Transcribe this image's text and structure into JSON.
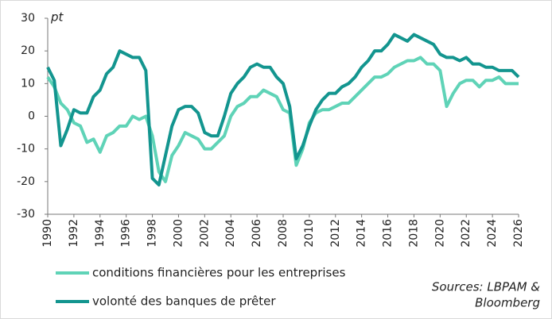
{
  "chart_data": {
    "type": "line",
    "y_label": "pt",
    "source": [
      "Sources: LBPAM &",
      "Bloomberg"
    ],
    "x": [
      1990,
      1990.5,
      1991,
      1991.5,
      1992,
      1992.5,
      1993,
      1993.5,
      1994,
      1994.5,
      1995,
      1995.5,
      1996,
      1996.5,
      1997,
      1997.5,
      1998,
      1998.5,
      1999,
      1999.5,
      2000,
      2000.5,
      2001,
      2001.5,
      2002,
      2002.5,
      2003,
      2003.5,
      2004,
      2004.5,
      2005,
      2005.5,
      2006,
      2006.5,
      2007,
      2007.5,
      2008,
      2008.5,
      2009,
      2009.5,
      2010,
      2010.5,
      2011,
      2011.5,
      2012,
      2012.5,
      2013,
      2013.5,
      2014,
      2014.5,
      2015,
      2015.5,
      2016,
      2016.5,
      2017,
      2017.5,
      2018,
      2018.5,
      2019,
      2019.5,
      2020,
      2020.5,
      2021,
      2021.5,
      2022,
      2022.5,
      2023,
      2023.5,
      2024,
      2024.5,
      2025,
      2025.5,
      2026
    ],
    "series": [
      {
        "name": "conditions financières pour les entreprises",
        "color": "#5fd3b7",
        "values": [
          12,
          9,
          4,
          2,
          -2,
          -3,
          -8,
          -7,
          -11,
          -6,
          -5,
          -3,
          -3,
          0,
          -1,
          0,
          -6,
          -17,
          -20,
          -12,
          -9,
          -5,
          -6,
          -7,
          -10,
          -10,
          -8,
          -6,
          0,
          3,
          4,
          6,
          6,
          8,
          7,
          6,
          2,
          1,
          -15,
          -10,
          -2,
          1,
          2,
          2,
          3,
          4,
          4,
          6,
          8,
          10,
          12,
          12,
          13,
          15,
          16,
          17,
          17,
          18,
          16,
          16,
          14,
          3,
          7,
          10,
          11,
          11,
          9,
          11,
          11,
          12,
          10,
          10,
          10
        ]
      },
      {
        "name": "volonté des banques de prêter",
        "color": "#13958f",
        "values": [
          15,
          11,
          -9,
          -4,
          2,
          1,
          1,
          6,
          8,
          13,
          15,
          20,
          19,
          18,
          18,
          14,
          -19,
          -21,
          -12,
          -3,
          2,
          3,
          3,
          1,
          -5,
          -6,
          -6,
          0,
          7,
          10,
          12,
          15,
          16,
          15,
          15,
          12,
          10,
          3,
          -13,
          -9,
          -3,
          2,
          5,
          7,
          7,
          9,
          10,
          12,
          15,
          17,
          20,
          20,
          22,
          25,
          24,
          23,
          25,
          24,
          23,
          22,
          19,
          18,
          18,
          17,
          18,
          16,
          16,
          15,
          15,
          14,
          14,
          14,
          12
        ]
      }
    ],
    "xlim": [
      1990,
      2026
    ],
    "xticks": [
      1990,
      1992,
      1994,
      1996,
      1998,
      2000,
      2002,
      2004,
      2006,
      2008,
      2010,
      2012,
      2014,
      2016,
      2018,
      2020,
      2022,
      2024,
      2026
    ],
    "ylim": [
      -30,
      30
    ],
    "yticks": [
      -30,
      -20,
      -10,
      0,
      10,
      20,
      30
    ]
  }
}
